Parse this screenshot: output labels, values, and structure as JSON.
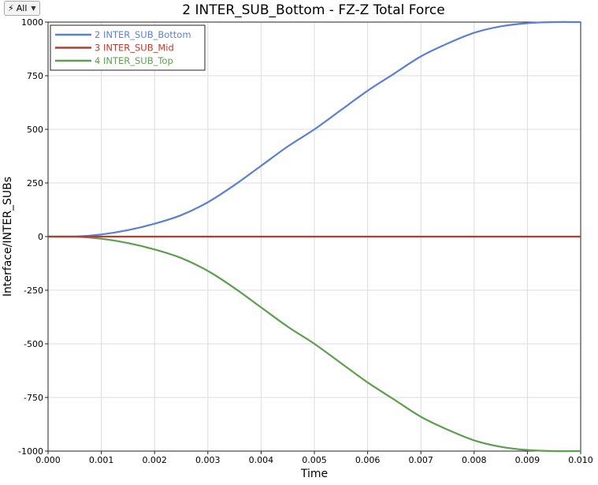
{
  "filter": {
    "icon": "lightning-bolt-icon",
    "label": "All"
  },
  "chart_data": {
    "type": "line",
    "title": "2 INTER_SUB_Bottom - FZ-Z Total Force",
    "xlabel": "Time",
    "ylabel": "Interface/INTER_SUBs",
    "xlim": [
      0,
      0.01
    ],
    "ylim": [
      -1000,
      1000
    ],
    "xticks": [
      "0.000",
      "0.001",
      "0.002",
      "0.003",
      "0.004",
      "0.005",
      "0.006",
      "0.007",
      "0.008",
      "0.009",
      "0.010"
    ],
    "yticks": [
      "1000",
      "750",
      "500",
      "250",
      "0",
      "-250",
      "-500",
      "-750",
      "-1000"
    ],
    "grid": true,
    "legend_position": "top-left",
    "x": [
      0,
      0.0005,
      0.001,
      0.0015,
      0.002,
      0.0025,
      0.003,
      0.0035,
      0.004,
      0.0045,
      0.005,
      0.0055,
      0.006,
      0.0065,
      0.007,
      0.0075,
      0.008,
      0.0085,
      0.009,
      0.0095,
      0.01
    ],
    "series": [
      {
        "name": "2 INTER_SUB_Bottom",
        "color": "#5b7fd4",
        "values": [
          0,
          0,
          10,
          30,
          60,
          100,
          160,
          240,
          330,
          420,
          500,
          590,
          680,
          760,
          840,
          900,
          950,
          980,
          995,
          1000,
          1000
        ]
      },
      {
        "name": "3 INTER_SUB_Mid",
        "color": "#c0392b",
        "values": [
          0,
          0,
          0,
          0,
          0,
          0,
          0,
          0,
          0,
          0,
          0,
          0,
          0,
          0,
          0,
          0,
          0,
          0,
          0,
          0,
          0
        ]
      },
      {
        "name": "4 INTER_SUB_Top",
        "color": "#5e9e4f",
        "values": [
          0,
          0,
          -10,
          -30,
          -60,
          -100,
          -160,
          -240,
          -330,
          -420,
          -500,
          -590,
          -680,
          -760,
          -840,
          -900,
          -950,
          -980,
          -995,
          -1000,
          -1000
        ]
      }
    ]
  }
}
